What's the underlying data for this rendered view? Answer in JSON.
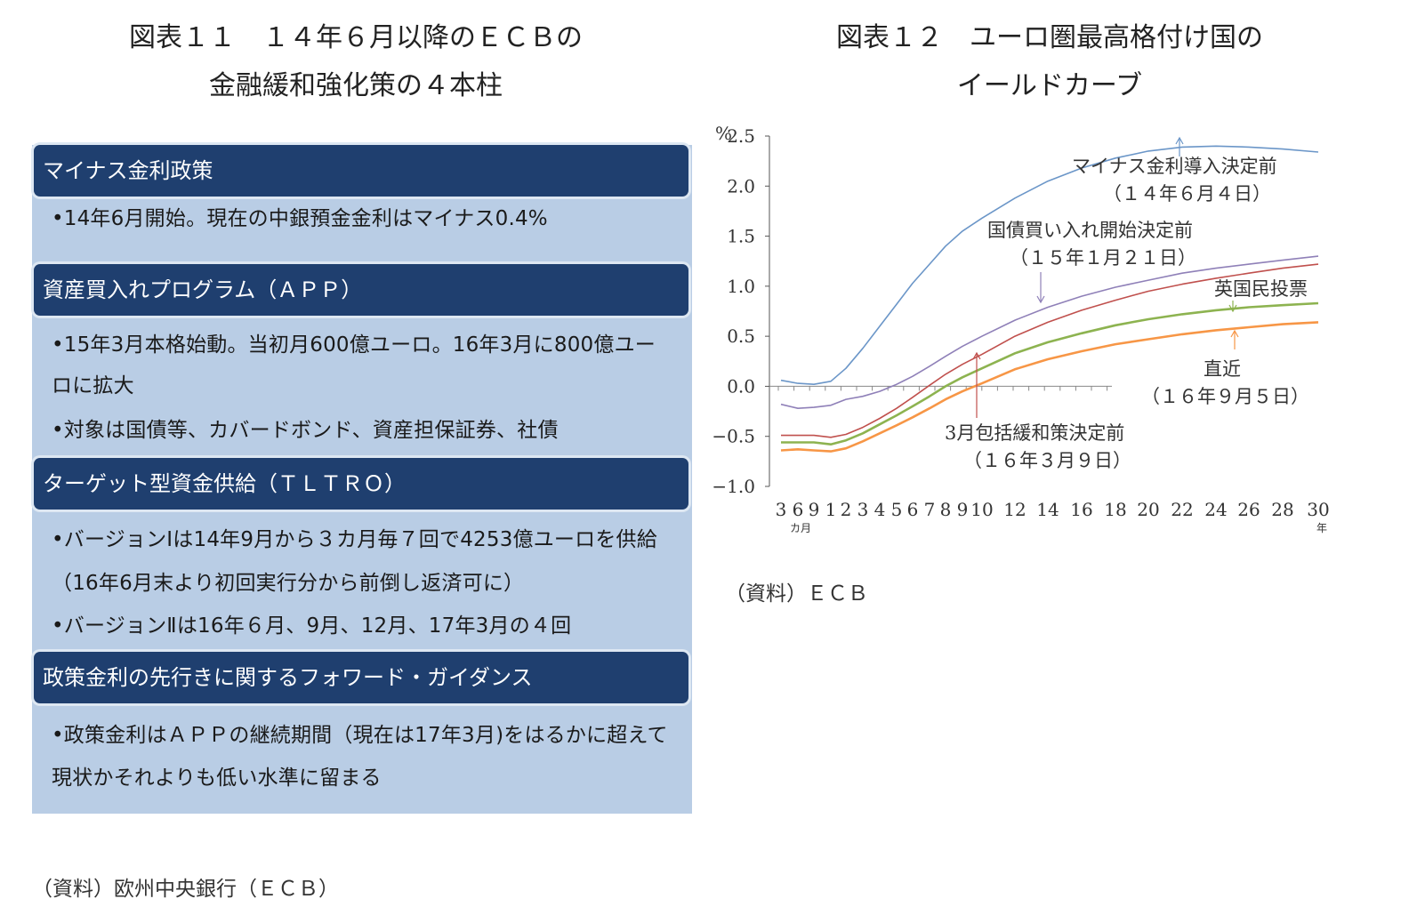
{
  "left": {
    "title_line1": "図表１１　１４年６月以降のＥＣＢの",
    "title_line2": "金融緩和強化策の４本柱",
    "pillars": [
      {
        "heading": "マイナス金利政策",
        "bullets": [
          "•14年6月開始。現在の中銀預金金利はマイナス0.4%"
        ]
      },
      {
        "heading": "資産買入れプログラム（ＡＰＰ）",
        "bullets": [
          "•15年3月本格始動。当初月600億ユーロ。16年3月に800億ユーロに拡大",
          "•対象は国債等、カバードボンド、資産担保証券、社債"
        ]
      },
      {
        "heading": "ターゲット型資金供給（ＴＬＴＲＯ）",
        "bullets": [
          "•バージョンⅠは14年9月から３カ月毎７回で4253億ユーロを供給（16年6月末より初回実行分から前倒し返済可に）",
          "•バージョンⅡは16年６月、9月、12月、17年3月の４回"
        ]
      },
      {
        "heading": "政策金利の先行きに関するフォワード・ガイダンス",
        "bullets": [
          "•政策金利はＡＰＰの継続期間（現在は17年3月)をはるかに超えて現状かそれよりも低い水準に留まる"
        ]
      }
    ],
    "source": "（資料）欧州中央銀行（ＥＣＢ）"
  },
  "right": {
    "title_line1": "図表１２　ユーロ圏最高格付け国の",
    "title_line2": "イールドカーブ",
    "source": "（資料）ＥＣＢ"
  },
  "chart_data": {
    "type": "line",
    "ylabel": "%",
    "ylim": [
      -1.0,
      2.5
    ],
    "yticks": [
      "2.5",
      "2.0",
      "1.5",
      "1.0",
      "0.5",
      "0.0",
      "−0.5",
      "−1.0"
    ],
    "ytick_values": [
      2.5,
      2.0,
      1.5,
      1.0,
      0.5,
      0.0,
      -0.5,
      -1.0
    ],
    "xtick_labels": [
      "3",
      "6",
      "9",
      "1",
      "2",
      "3",
      "4",
      "5",
      "6",
      "7",
      "8",
      "9",
      "10",
      "12",
      "14",
      "16",
      "18",
      "20",
      "22",
      "24",
      "26",
      "28",
      "30"
    ],
    "x_unit_months": "カ月",
    "x_unit_years": "年",
    "grid": false,
    "series": [
      {
        "name": "マイナス金利導入決定前",
        "date": "（１４年６月４日）",
        "color": "#6b96c8",
        "values": [
          0.06,
          0.03,
          0.02,
          0.05,
          0.18,
          0.38,
          0.6,
          0.82,
          1.03,
          1.22,
          1.4,
          1.55,
          1.68,
          1.88,
          2.05,
          2.18,
          2.28,
          2.35,
          2.39,
          2.4,
          2.39,
          2.37,
          2.34
        ]
      },
      {
        "name": "国債買い入れ開始決定前",
        "date": "（１５年１月２１日）",
        "color": "#8f80b8",
        "values": [
          -0.18,
          -0.22,
          -0.21,
          -0.19,
          -0.13,
          -0.1,
          -0.05,
          0.02,
          0.1,
          0.2,
          0.3,
          0.4,
          0.5,
          0.66,
          0.79,
          0.9,
          0.99,
          1.06,
          1.13,
          1.18,
          1.22,
          1.26,
          1.3
        ]
      },
      {
        "name": "3月包括緩和策決定前",
        "date": "（１６年３月９日）",
        "color": "#c0504d",
        "values": [
          -0.49,
          -0.49,
          -0.49,
          -0.51,
          -0.48,
          -0.41,
          -0.32,
          -0.22,
          -0.11,
          0.01,
          0.12,
          0.22,
          0.32,
          0.5,
          0.64,
          0.76,
          0.86,
          0.95,
          1.02,
          1.08,
          1.13,
          1.18,
          1.22
        ]
      },
      {
        "name": "英国民投票",
        "date": "",
        "color": "#8db350",
        "values": [
          -0.56,
          -0.56,
          -0.56,
          -0.58,
          -0.54,
          -0.47,
          -0.38,
          -0.29,
          -0.2,
          -0.1,
          0.0,
          0.09,
          0.18,
          0.33,
          0.44,
          0.53,
          0.61,
          0.67,
          0.72,
          0.76,
          0.79,
          0.81,
          0.83
        ]
      },
      {
        "name": "直近",
        "date": "（１６年９月５日）",
        "color": "#f79646",
        "values": [
          -0.64,
          -0.63,
          -0.64,
          -0.65,
          -0.62,
          -0.55,
          -0.47,
          -0.39,
          -0.31,
          -0.22,
          -0.13,
          -0.05,
          0.03,
          0.17,
          0.27,
          0.35,
          0.42,
          0.47,
          0.52,
          0.56,
          0.59,
          0.62,
          0.64
        ]
      }
    ]
  }
}
